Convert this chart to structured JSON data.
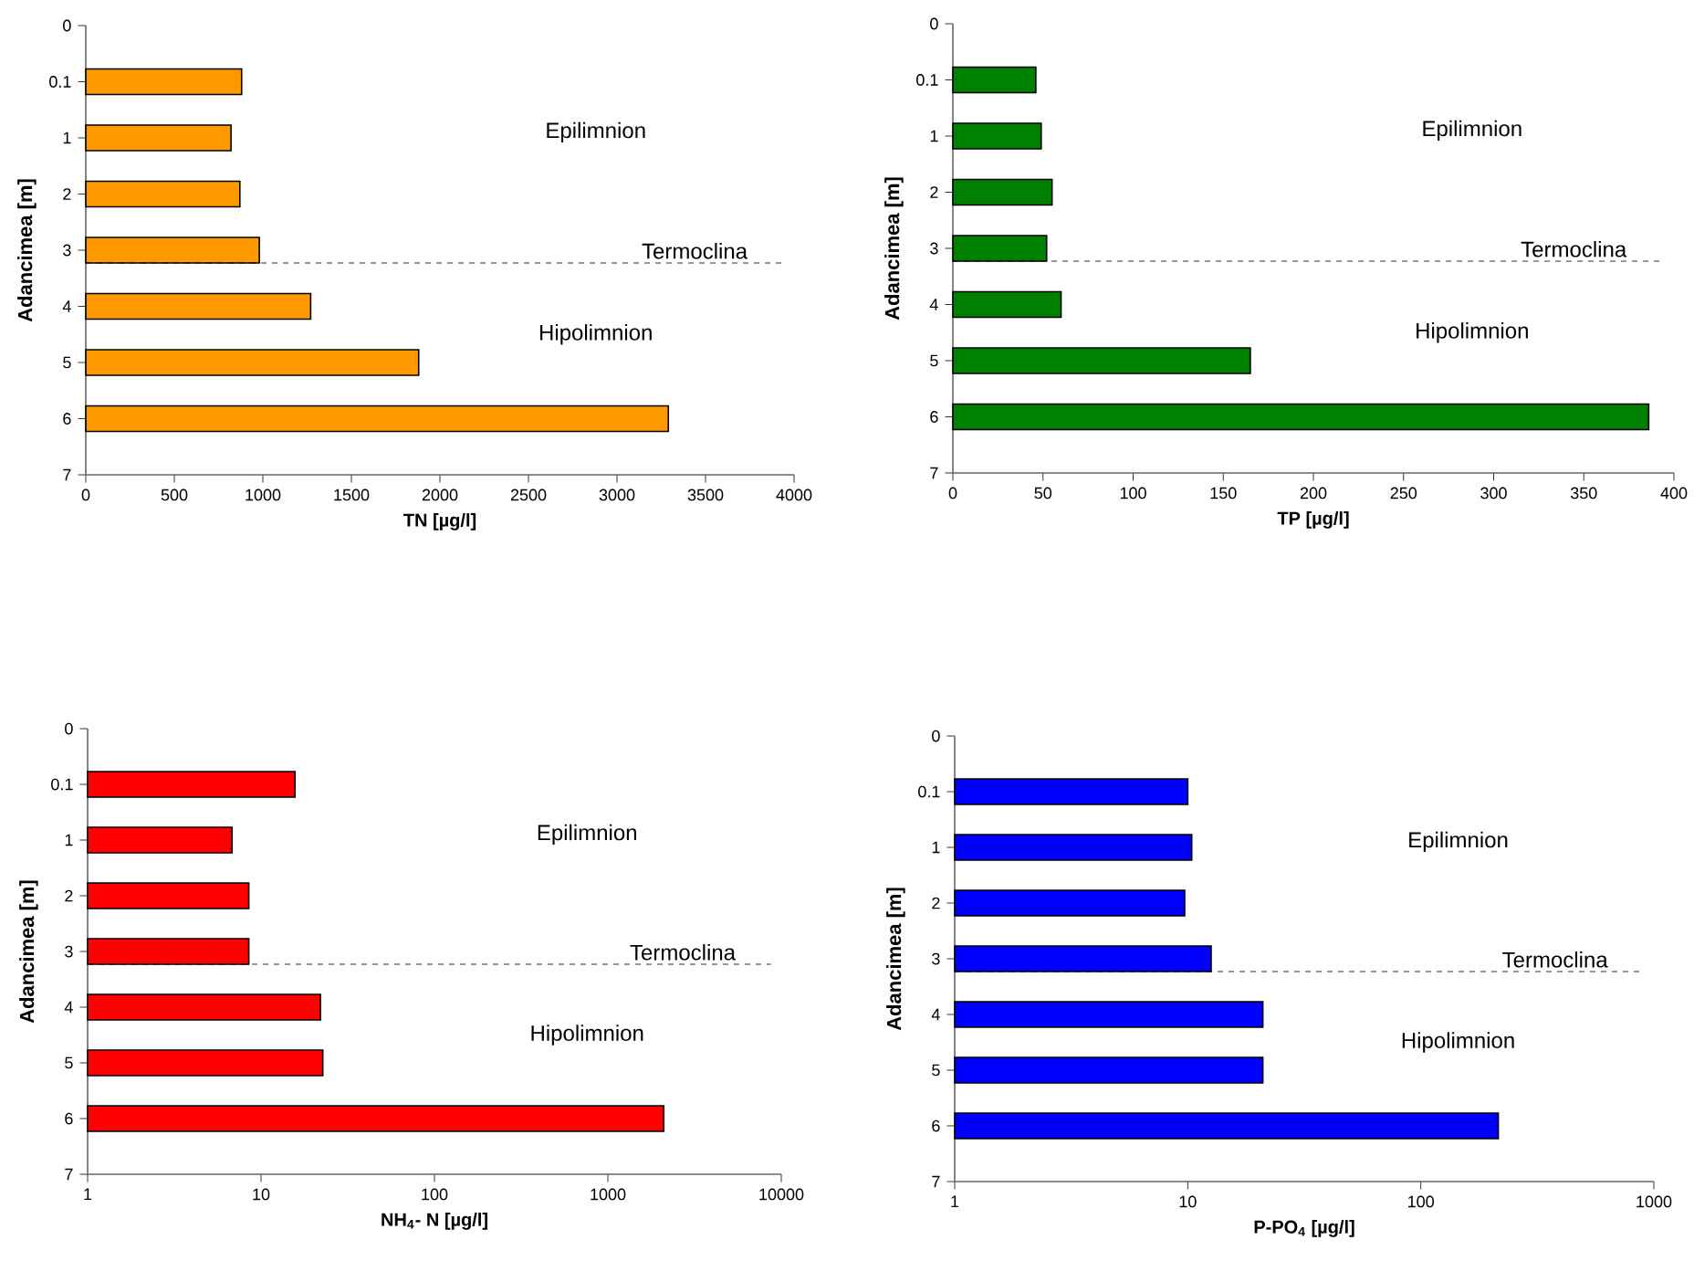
{
  "chart_data": [
    {
      "type": "bar",
      "orientation": "horizontal",
      "categories": [
        "0",
        "0.1",
        "1",
        "2",
        "3",
        "4",
        "5",
        "6",
        "7"
      ],
      "values": [
        null,
        880,
        820,
        870,
        980,
        1270,
        1880,
        3290,
        null
      ],
      "color": "#ff9900",
      "xlabel": "TN  [µg/l]",
      "ylabel": "Adancimea [m]",
      "xlim": [
        0,
        4000
      ],
      "xticks": [
        0,
        500,
        1000,
        1500,
        2000,
        2500,
        3000,
        3500,
        4000
      ],
      "ref_lines": [
        {
          "axis": "y",
          "value": "3",
          "label": "Termoclina",
          "line_style": "dashed",
          "color": "#000000"
        }
      ],
      "annotations": [
        "Epilimnion",
        "Hipolimnion"
      ]
    },
    {
      "type": "bar",
      "orientation": "horizontal",
      "categories": [
        "0",
        "0.1",
        "1",
        "2",
        "3",
        "4",
        "5",
        "6",
        "7"
      ],
      "values": [
        null,
        46,
        49,
        55,
        52,
        60,
        165,
        386,
        null
      ],
      "color": "#008000",
      "xlabel": "TP  [µg/l]",
      "ylabel": "Adancimea [m]",
      "xlim": [
        0,
        400
      ],
      "xticks": [
        0,
        50,
        100,
        150,
        200,
        250,
        300,
        350,
        400
      ],
      "ref_lines": [
        {
          "axis": "y",
          "value": "3",
          "label": "Termoclina",
          "line_style": "dashed",
          "color": "#000000"
        }
      ],
      "annotations": [
        "Epilimnion",
        "Hipolimnion"
      ]
    },
    {
      "type": "bar",
      "orientation": "horizontal",
      "log": "x",
      "categories": [
        "0",
        "0.1",
        "1",
        "2",
        "3",
        "4",
        "5",
        "6",
        "7"
      ],
      "values": [
        null,
        15.7,
        6.8,
        8.5,
        8.5,
        22,
        22.7,
        2100,
        null
      ],
      "color": "#ff0000",
      "xlabel": "NH$_{4}$- N [µg/l]",
      "ylabel": "Adancimea [m]",
      "xlim": [
        1,
        10000
      ],
      "xticks": [
        1,
        10,
        100,
        1000,
        10000
      ],
      "ref_lines": [
        {
          "axis": "y",
          "value": "3",
          "label": "Termoclina",
          "line_style": "dashed",
          "color": "#000000"
        }
      ],
      "annotations": [
        "Epilimnion",
        "Hipolimnion"
      ]
    },
    {
      "type": "bar",
      "orientation": "horizontal",
      "log": "x",
      "categories": [
        "0",
        "0.1",
        "1",
        "2",
        "3",
        "4",
        "5",
        "6",
        "7"
      ],
      "values": [
        null,
        10,
        10.4,
        9.7,
        12.6,
        21,
        21,
        215,
        null
      ],
      "color": "#0000ff",
      "xlabel": "P-PO$_{4}$  [µg/l]",
      "ylabel": "Adancimea [m]",
      "xlim": [
        1,
        1000
      ],
      "xticks": [
        1,
        10,
        100,
        1000
      ],
      "ref_lines": [
        {
          "axis": "y",
          "value": "3",
          "label": "Termoclina",
          "line_style": "dashed",
          "color": "#000000"
        }
      ],
      "annotations": [
        "Epilimnion",
        "Hipolimnion"
      ]
    }
  ]
}
